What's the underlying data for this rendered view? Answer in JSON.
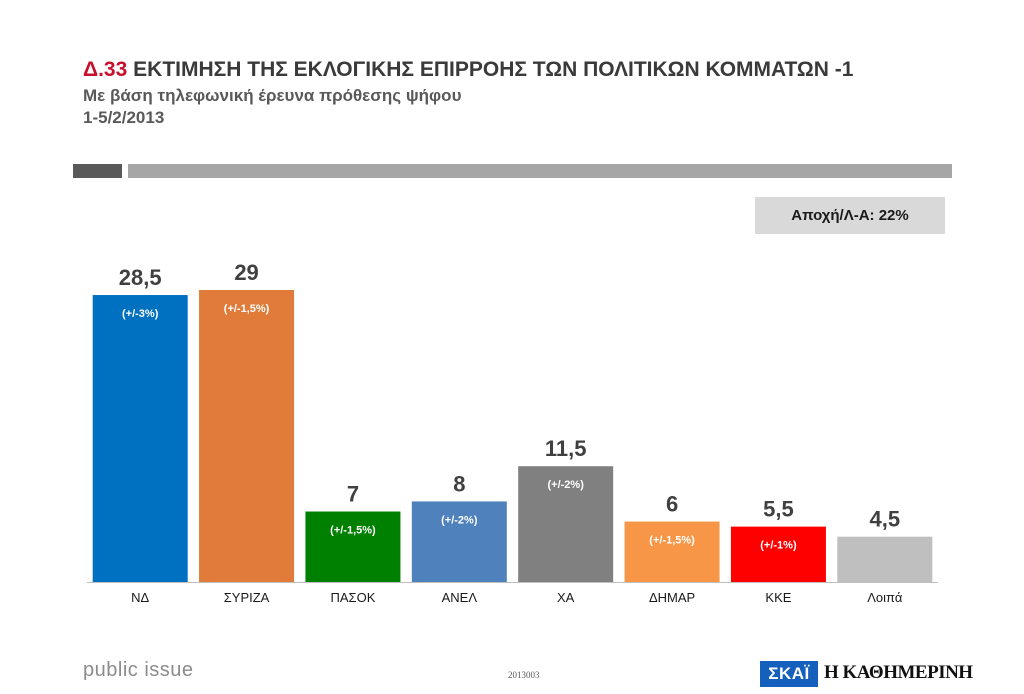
{
  "header": {
    "code": "Δ.33",
    "title": "ΕΚΤΙΜΗΣΗ ΤΗΣ ΕΚΛΟΓΙΚΗΣ ΕΠΙΡΡΟΗΣ ΤΩΝ ΠΟΛΙΤΙΚΩΝ ΚΟΜΜΑΤΩΝ -1",
    "subtitle": "Με βάση τηλεφωνική έρευνα πρόθεσης ψήφου",
    "date": "1-5/2/2013"
  },
  "abstention_box": "Αποχή/Λ-Α: 22%",
  "chart_data": {
    "type": "bar",
    "title": "ΕΚΤΙΜΗΣΗ ΤΗΣ ΕΚΛΟΓΙΚΗΣ ΕΠΙΡΡΟΗΣ ΤΩΝ ΠΟΛΙΤΙΚΩΝ ΚΟΜΜΑΤΩΝ -1",
    "xlabel": "",
    "ylabel": "",
    "ylim": [
      0,
      29
    ],
    "grid": false,
    "categories": [
      "ΝΔ",
      "ΣΥΡΙΖΑ",
      "ΠΑΣΟΚ",
      "ΑΝΕΛ",
      "ΧΑ",
      "ΔΗΜΑΡ",
      "ΚΚΕ",
      "Λοιπά"
    ],
    "values": [
      28.5,
      29,
      7,
      8,
      11.5,
      6,
      5.5,
      4.5
    ],
    "value_labels": [
      "28,5",
      "29",
      "7",
      "8",
      "11,5",
      "6",
      "5,5",
      "4,5"
    ],
    "margins": [
      "(+/-3%)",
      "(+/-1,5%)",
      "(+/-1,5%)",
      "(+/-2%)",
      "(+/-2%)",
      "(+/-1,5%)",
      "(+/-1%)",
      ""
    ],
    "colors": [
      "#0070c0",
      "#e07b39",
      "#008000",
      "#4f81bd",
      "#808080",
      "#f79646",
      "#ff0000",
      "#bfbfbf"
    ]
  },
  "footer": {
    "brand": "public issue",
    "code": "2013003",
    "logo_skai": "ΣΚΑΪ",
    "logo_kathimerini": "Η ΚΑΘΗΜΕΡΙΝΗ"
  }
}
